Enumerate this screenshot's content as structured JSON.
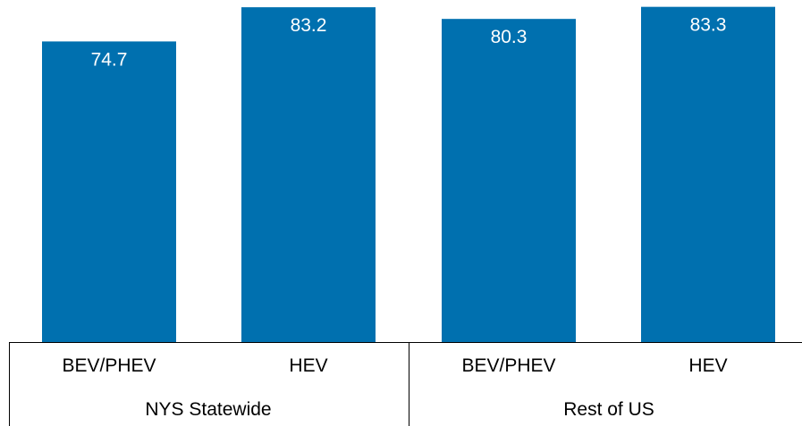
{
  "chart_data": {
    "type": "bar",
    "groups": [
      {
        "label": "NYS Statewide",
        "categories": [
          "BEV/PHEV",
          "HEV"
        ],
        "values": [
          74.7,
          83.2
        ]
      },
      {
        "label": "Rest of US",
        "categories": [
          "BEV/PHEV",
          "HEV"
        ],
        "values": [
          80.3,
          83.3
        ]
      }
    ],
    "value_labels": [
      "74.7",
      "83.2",
      "80.3",
      "83.3"
    ],
    "title": "",
    "xlabel": "",
    "ylabel": "",
    "ylim": [
      0,
      85
    ],
    "grid": false,
    "legend": "none",
    "colors": {
      "bar": "#0070AF"
    }
  }
}
